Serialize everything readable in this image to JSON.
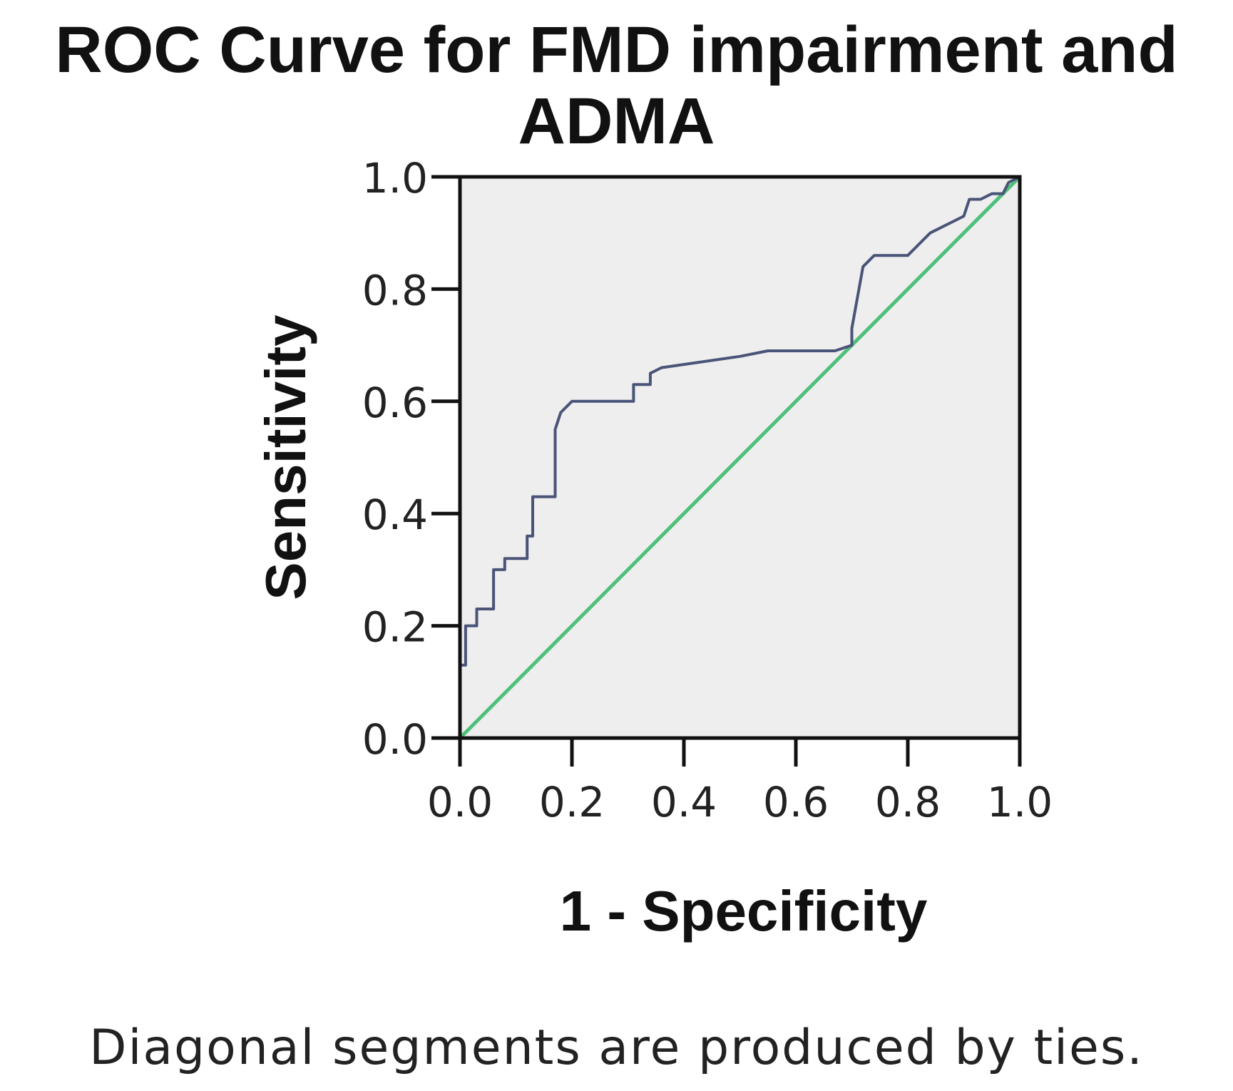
{
  "chart_data": {
    "type": "line",
    "title": "ROC Curve for FMD impairment and ADMA",
    "xlabel": "1 - Specificity",
    "ylabel": "Sensitivity",
    "xlim": [
      0,
      1
    ],
    "ylim": [
      0,
      1
    ],
    "xticks": [
      "0.0",
      "0.2",
      "0.4",
      "0.6",
      "0.8",
      "1.0"
    ],
    "yticks": [
      "0.0",
      "0.2",
      "0.4",
      "0.6",
      "0.8",
      "1.0"
    ],
    "grid": false,
    "legend": "none",
    "footnote": "Diagonal segments are produced by ties.",
    "colors": {
      "curve": "#4a5478",
      "reference": "#4ec07a",
      "plot_bg": "#eeeeee",
      "axis": "#111111"
    },
    "series": [
      {
        "role": "roc-curve",
        "x": [
          0.0,
          0.0,
          0.01,
          0.01,
          0.03,
          0.03,
          0.06,
          0.06,
          0.08,
          0.08,
          0.12,
          0.12,
          0.13,
          0.13,
          0.17,
          0.17,
          0.18,
          0.2,
          0.31,
          0.31,
          0.34,
          0.34,
          0.36,
          0.5,
          0.55,
          0.67,
          0.7,
          0.7,
          0.72,
          0.74,
          0.78,
          0.8,
          0.82,
          0.84,
          0.86,
          0.88,
          0.9,
          0.91,
          0.93,
          0.95,
          0.97,
          0.98,
          1.0
        ],
        "y": [
          0.0,
          0.13,
          0.13,
          0.2,
          0.2,
          0.23,
          0.23,
          0.3,
          0.3,
          0.32,
          0.32,
          0.36,
          0.36,
          0.43,
          0.43,
          0.55,
          0.58,
          0.6,
          0.6,
          0.63,
          0.63,
          0.65,
          0.66,
          0.68,
          0.69,
          0.69,
          0.7,
          0.73,
          0.84,
          0.86,
          0.86,
          0.86,
          0.88,
          0.9,
          0.91,
          0.92,
          0.93,
          0.96,
          0.96,
          0.97,
          0.97,
          0.99,
          1.0
        ]
      },
      {
        "role": "reference-line",
        "x": [
          0.0,
          1.0
        ],
        "y": [
          0.0,
          1.0
        ]
      }
    ]
  }
}
